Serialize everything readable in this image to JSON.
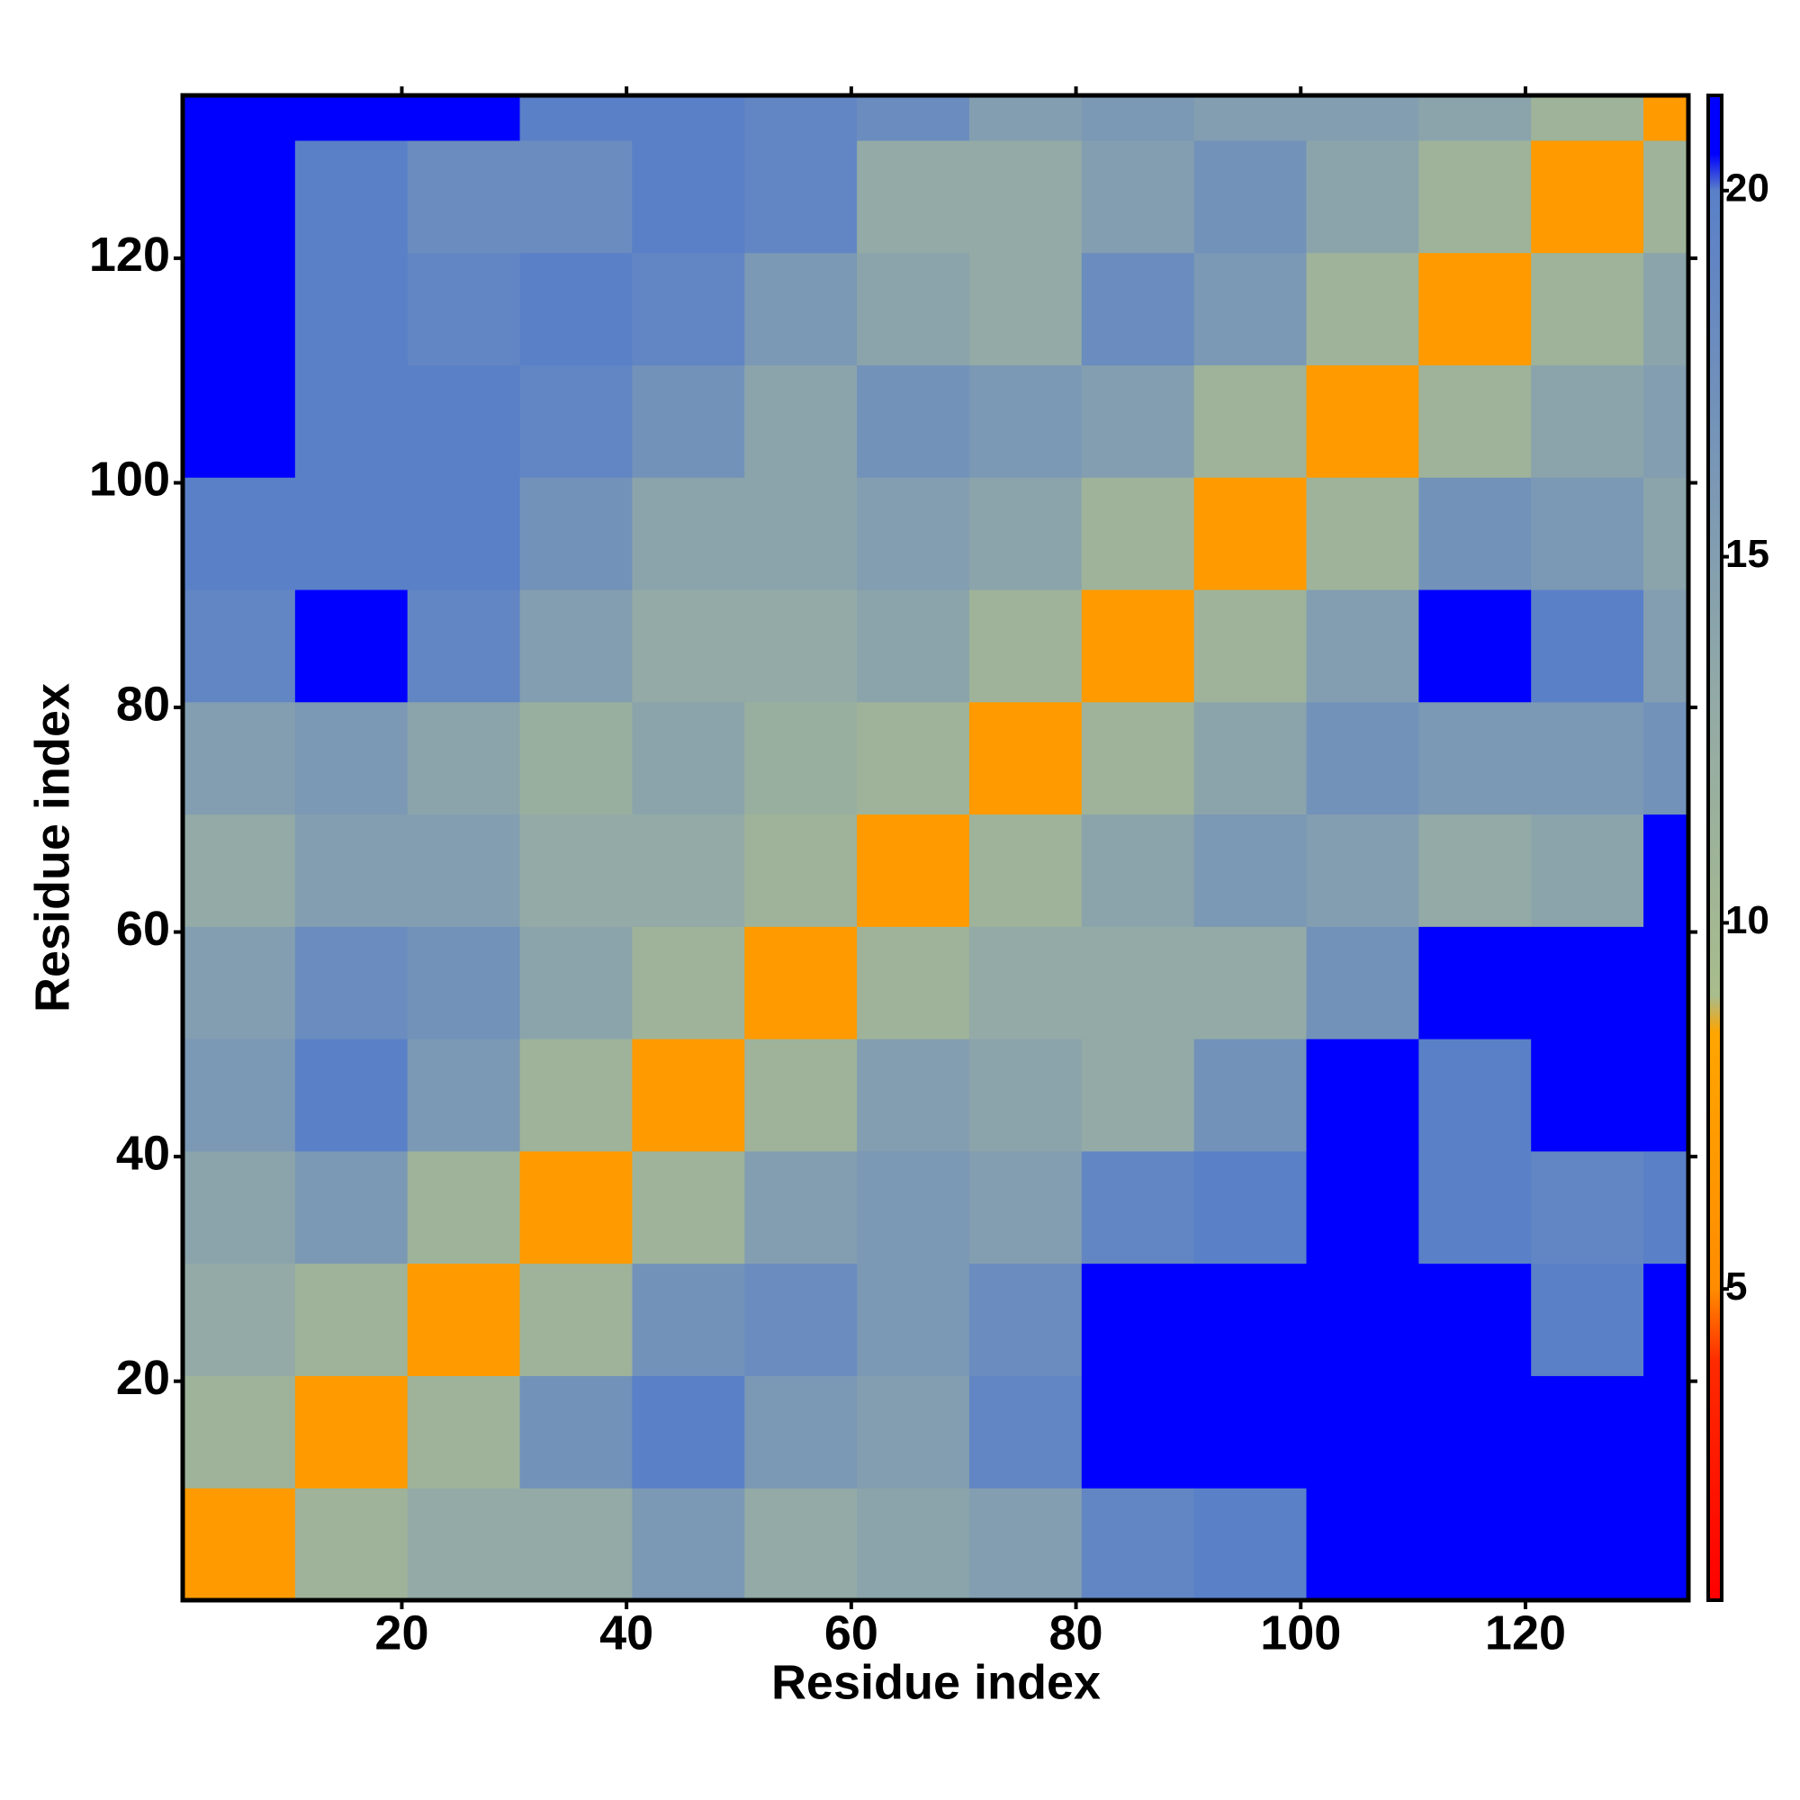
{
  "chart_data": {
    "type": "heatmap",
    "xlabel": "Residue index",
    "ylabel": "Residue index",
    "xbins": [
      0.5,
      10.5,
      20.5,
      30.5,
      40.5,
      50.5,
      60.5,
      70.5,
      80.5,
      90.5,
      100.5,
      110.5,
      120.5,
      130.5,
      134.5
    ],
    "ybins": [
      0.5,
      10.5,
      20.5,
      30.5,
      40.5,
      50.5,
      60.5,
      70.5,
      80.5,
      90.5,
      100.5,
      110.5,
      120.5,
      130.5,
      134.5
    ],
    "z": [
      [
        7,
        11,
        13,
        13,
        16,
        13,
        14,
        15,
        19,
        20,
        21,
        21,
        21,
        21
      ],
      [
        11,
        7,
        11,
        17,
        20,
        16,
        15,
        19,
        21,
        21,
        21,
        21,
        21,
        21
      ],
      [
        13,
        11,
        7,
        11,
        17,
        18,
        16,
        18,
        21,
        21,
        21,
        21,
        20,
        21
      ],
      [
        14,
        16,
        11,
        7,
        11,
        15,
        16,
        15,
        19,
        20,
        21,
        20,
        19,
        20
      ],
      [
        16,
        20,
        16,
        11,
        7,
        11,
        15,
        14,
        13,
        17,
        21,
        20,
        21,
        21
      ],
      [
        15,
        18,
        17,
        14,
        11,
        7,
        11,
        13,
        13,
        13,
        17,
        21,
        21,
        21
      ],
      [
        13,
        15,
        15,
        13,
        13,
        11,
        7,
        11,
        14,
        16,
        15,
        13,
        14,
        21
      ],
      [
        15,
        16,
        14,
        12,
        14,
        12,
        11,
        7,
        11,
        14,
        17,
        16,
        16,
        17
      ],
      [
        19,
        21,
        19,
        15,
        13,
        13,
        14,
        11,
        7,
        11,
        15,
        21,
        20,
        15
      ],
      [
        20,
        20,
        20,
        17,
        14,
        14,
        15,
        14,
        11,
        7,
        11,
        17,
        16,
        14
      ],
      [
        21,
        20,
        20,
        19,
        17,
        14,
        17,
        16,
        15,
        11,
        7,
        11,
        14,
        15
      ],
      [
        21,
        20,
        19,
        20,
        19,
        16,
        14,
        13,
        18,
        16,
        11,
        7,
        11,
        14
      ],
      [
        21,
        20,
        18,
        18,
        20,
        19,
        13,
        13,
        15,
        17,
        14,
        11,
        7,
        11
      ],
      [
        21,
        21,
        21,
        20,
        20,
        19,
        18,
        15,
        16,
        15,
        15,
        14,
        11,
        7
      ]
    ],
    "xlim": [
      0.5,
      134.5
    ],
    "ylim": [
      0.5,
      134.5
    ],
    "xticks": [
      20,
      40,
      60,
      80,
      100,
      120
    ],
    "yticks": [
      20,
      40,
      60,
      80,
      100,
      120
    ],
    "colorbar": {
      "zlim": [
        0.75,
        21.3
      ],
      "ticks": [
        5,
        10,
        15,
        20
      ],
      "colorscale": [
        [
          0.75,
          "#ff0000"
        ],
        [
          4,
          "#ff2a00"
        ],
        [
          5,
          "#ff8c00"
        ],
        [
          8.5,
          "#ffa500"
        ],
        [
          9,
          "#a8bc8c"
        ],
        [
          13,
          "#93aaa6"
        ],
        [
          20,
          "#5a80c8"
        ],
        [
          20.5,
          "#0000ff"
        ],
        [
          21.3,
          "#0000ff"
        ]
      ]
    }
  }
}
